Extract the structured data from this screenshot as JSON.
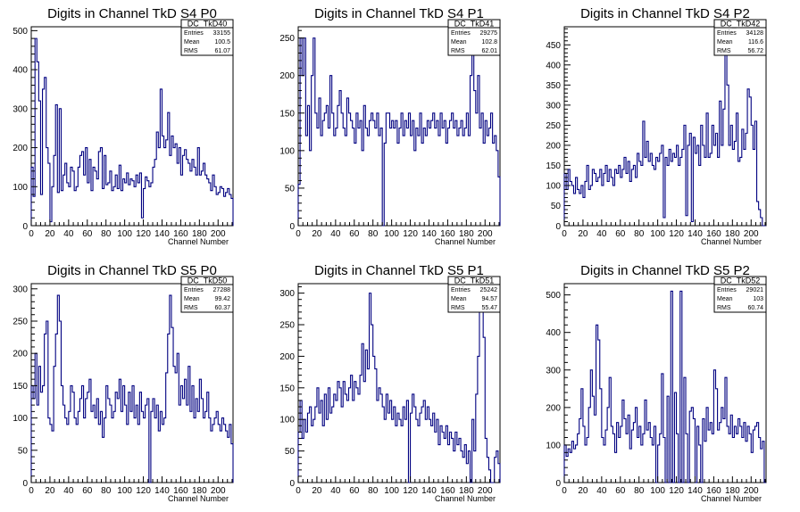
{
  "chart_data": [
    {
      "type": "histogram",
      "title": "Digits in Channel TkD S4 P0",
      "xlabel": "Channel Number",
      "xlim": [
        0,
        216
      ],
      "ylim": [
        0,
        510
      ],
      "xticks": [
        0,
        20,
        40,
        60,
        80,
        100,
        120,
        140,
        160,
        180,
        200
      ],
      "yticks": [
        100,
        200,
        300,
        400,
        500
      ],
      "stats": {
        "name": "DC_TkD40",
        "entries": "33155",
        "mean": "100.5",
        "rms": "61.07"
      },
      "series": [
        {
          "values": [
            150,
            75,
            480,
            420,
            320,
            80,
            350,
            380,
            200,
            160,
            10,
            100,
            180,
            310,
            85,
            300,
            90,
            130,
            160,
            110,
            100,
            150,
            140,
            90,
            100,
            150,
            180,
            190,
            130,
            200,
            110,
            170,
            90,
            150,
            140,
            120,
            190,
            200,
            95,
            180,
            105,
            110,
            140,
            90,
            100,
            130,
            95,
            155,
            90,
            120,
            110,
            135,
            105,
            120,
            115,
            100,
            130,
            110,
            135,
            20,
            95,
            125,
            115,
            100,
            110,
            150,
            170,
            240,
            200,
            350,
            230,
            200,
            220,
            290,
            180,
            230,
            200,
            210,
            160,
            200,
            130,
            180,
            195,
            170,
            160,
            140,
            170,
            150,
            130,
            200,
            130,
            140,
            160,
            130,
            120,
            110,
            90,
            130,
            100,
            80,
            85,
            100,
            95,
            75,
            85,
            95,
            80,
            70
          ]
        }
      ]
    },
    {
      "type": "histogram",
      "title": "Digits in Channel TkD S4 P1",
      "xlabel": "Channel Number",
      "xlim": [
        0,
        216
      ],
      "ylim": [
        0,
        265
      ],
      "xticks": [
        0,
        20,
        40,
        60,
        80,
        100,
        120,
        140,
        160,
        180,
        200
      ],
      "yticks": [
        50,
        100,
        150,
        200,
        250
      ],
      "stats": {
        "name": "DC_TkD41",
        "entries": "29275",
        "mean": "102.8",
        "rms": "62.01"
      },
      "series": [
        {
          "values": [
            55,
            250,
            200,
            250,
            120,
            160,
            100,
            200,
            250,
            150,
            130,
            170,
            120,
            140,
            150,
            160,
            130,
            200,
            150,
            120,
            130,
            160,
            180,
            150,
            130,
            120,
            170,
            150,
            140,
            130,
            110,
            150,
            130,
            140,
            100,
            160,
            130,
            120,
            140,
            150,
            140,
            130,
            150,
            120,
            130,
            0,
            110,
            150,
            150,
            130,
            140,
            130,
            140,
            110,
            130,
            150,
            120,
            140,
            130,
            150,
            120,
            140,
            100,
            130,
            120,
            150,
            110,
            130,
            120,
            140,
            130,
            140,
            150,
            130,
            140,
            120,
            150,
            130,
            140,
            110,
            130,
            140,
            150,
            130,
            140,
            120,
            130,
            140,
            120,
            130,
            150,
            120,
            200,
            240,
            180,
            150,
            200,
            130,
            150,
            110,
            140,
            120,
            130,
            150,
            110,
            120,
            100,
            65
          ]
        }
      ]
    },
    {
      "type": "histogram",
      "title": "Digits in Channel TkD S4 P2",
      "xlabel": "Channel Number",
      "xlim": [
        0,
        216
      ],
      "ylim": [
        0,
        495
      ],
      "xticks": [
        0,
        20,
        40,
        60,
        80,
        100,
        120,
        140,
        160,
        180,
        200
      ],
      "yticks": [
        50,
        100,
        150,
        200,
        250,
        300,
        350,
        400,
        450
      ],
      "stats": {
        "name": "DC_TkD42",
        "entries": "34128",
        "mean": "116.6",
        "rms": "56.72"
      },
      "series": [
        {
          "values": [
            130,
            90,
            140,
            110,
            100,
            80,
            120,
            90,
            80,
            100,
            70,
            110,
            150,
            90,
            100,
            140,
            130,
            110,
            120,
            140,
            100,
            130,
            150,
            110,
            140,
            120,
            100,
            140,
            130,
            150,
            120,
            140,
            170,
            130,
            160,
            110,
            140,
            150,
            120,
            180,
            160,
            150,
            260,
            170,
            210,
            160,
            180,
            150,
            140,
            170,
            160,
            180,
            200,
            20,
            170,
            150,
            190,
            160,
            180,
            170,
            200,
            150,
            170,
            190,
            250,
            25,
            200,
            230,
            10,
            220,
            180,
            200,
            150,
            250,
            200,
            170,
            280,
            170,
            180,
            250,
            200,
            230,
            170,
            310,
            200,
            290,
            470,
            350,
            200,
            250,
            190,
            210,
            280,
            160,
            170,
            240,
            190,
            230,
            340,
            320,
            250,
            190,
            260,
            60,
            40,
            20,
            0,
            0
          ]
        }
      ]
    },
    {
      "type": "histogram",
      "title": "Digits in Channel TkD S5 P0",
      "xlabel": "Channel Number",
      "xlim": [
        0,
        216
      ],
      "ylim": [
        0,
        308
      ],
      "xticks": [
        0,
        20,
        40,
        60,
        80,
        100,
        120,
        140,
        160,
        180,
        200
      ],
      "yticks": [
        50,
        100,
        150,
        200,
        250,
        300
      ],
      "stats": {
        "name": "DC_TkD50",
        "entries": "27288",
        "mean": "99.42",
        "rms": "60.37"
      },
      "series": [
        {
          "values": [
            150,
            130,
            200,
            120,
            180,
            140,
            150,
            230,
            250,
            100,
            90,
            80,
            180,
            230,
            290,
            250,
            150,
            120,
            100,
            90,
            110,
            150,
            140,
            100,
            90,
            110,
            130,
            150,
            100,
            130,
            140,
            160,
            110,
            120,
            100,
            130,
            90,
            110,
            70,
            100,
            150,
            130,
            120,
            100,
            110,
            140,
            130,
            160,
            110,
            150,
            120,
            90,
            140,
            110,
            150,
            100,
            120,
            90,
            140,
            110,
            100,
            120,
            130,
            0,
            110,
            130,
            100,
            120,
            80,
            110,
            90,
            100,
            170,
            230,
            290,
            240,
            180,
            170,
            200,
            120,
            150,
            130,
            160,
            120,
            180,
            110,
            150,
            100,
            130,
            110,
            160,
            130,
            100,
            110,
            140,
            100,
            80,
            90,
            100,
            110,
            90,
            80,
            100,
            90,
            80,
            70,
            90,
            60
          ]
        }
      ]
    },
    {
      "type": "histogram",
      "title": "Digits in Channel TkD S5 P1",
      "xlabel": "Channel Number",
      "xlim": [
        0,
        216
      ],
      "ylim": [
        0,
        315
      ],
      "xticks": [
        0,
        20,
        40,
        60,
        80,
        100,
        120,
        140,
        160,
        180,
        200
      ],
      "yticks": [
        50,
        100,
        150,
        200,
        250,
        300
      ],
      "stats": {
        "name": "DC_TkD51",
        "entries": "25242",
        "mean": "94.57",
        "rms": "55.47"
      },
      "series": [
        {
          "values": [
            80,
            130,
            70,
            100,
            80,
            110,
            120,
            90,
            100,
            120,
            150,
            110,
            130,
            90,
            140,
            100,
            150,
            110,
            120,
            140,
            130,
            160,
            150,
            120,
            160,
            140,
            130,
            150,
            170,
            130,
            160,
            150,
            140,
            170,
            220,
            160,
            210,
            180,
            300,
            250,
            200,
            180,
            130,
            150,
            140,
            120,
            100,
            140,
            110,
            130,
            100,
            120,
            90,
            110,
            100,
            90,
            120,
            100,
            130,
            0,
            110,
            140,
            120,
            100,
            90,
            110,
            120,
            130,
            100,
            120,
            100,
            90,
            110,
            80,
            100,
            60,
            90,
            80,
            70,
            90,
            60,
            80,
            70,
            50,
            80,
            60,
            70,
            50,
            40,
            60,
            30,
            50,
            0,
            100,
            50,
            140,
            200,
            270,
            300,
            230,
            70,
            40,
            20,
            0,
            0,
            40,
            50,
            30
          ]
        }
      ]
    },
    {
      "type": "histogram",
      "title": "Digits in Channel TkD S5 P2",
      "xlabel": "Channel Number",
      "xlim": [
        0,
        216
      ],
      "ylim": [
        0,
        530
      ],
      "xticks": [
        0,
        20,
        40,
        60,
        80,
        100,
        120,
        140,
        160,
        180,
        200
      ],
      "yticks": [
        100,
        200,
        300,
        400,
        500
      ],
      "stats": {
        "name": "DC_TkD52",
        "entries": "29021",
        "mean": "103",
        "rms": "60.74"
      },
      "series": [
        {
          "values": [
            100,
            70,
            90,
            80,
            110,
            90,
            100,
            130,
            170,
            250,
            150,
            100,
            120,
            200,
            300,
            230,
            180,
            420,
            380,
            250,
            120,
            100,
            140,
            200,
            280,
            150,
            130,
            80,
            160,
            120,
            150,
            220,
            170,
            130,
            180,
            90,
            140,
            160,
            200,
            120,
            150,
            100,
            130,
            220,
            140,
            160,
            120,
            100,
            150,
            0,
            100,
            130,
            290,
            120,
            0,
            230,
            0,
            510,
            0,
            240,
            130,
            0,
            510,
            0,
            280,
            130,
            0,
            190,
            200,
            170,
            0,
            150,
            100,
            0,
            170,
            110,
            200,
            140,
            160,
            130,
            300,
            250,
            140,
            160,
            200,
            170,
            280,
            150,
            130,
            180,
            120,
            150,
            130,
            170,
            150,
            120,
            160,
            110,
            150,
            130,
            80,
            140,
            150,
            160,
            120,
            90,
            110,
            0
          ]
        }
      ]
    }
  ]
}
